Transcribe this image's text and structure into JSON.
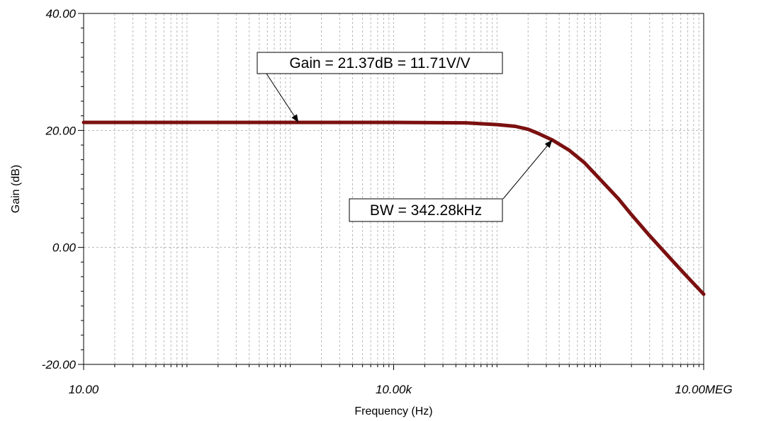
{
  "chart_data": {
    "type": "line",
    "xlabel": "Frequency (Hz)",
    "ylabel": "Gain (dB)",
    "x_scale": "log",
    "xlim": [
      10,
      10000000
    ],
    "ylim": [
      -20,
      40
    ],
    "x_ticks": [
      {
        "value": 10,
        "label": "10.00"
      },
      {
        "value": 10000,
        "label": "10.00k"
      },
      {
        "value": 10000000,
        "label": "10.00MEG"
      }
    ],
    "y_ticks": [
      {
        "value": 40,
        "label": "40.00"
      },
      {
        "value": 20,
        "label": "20.00"
      },
      {
        "value": 0,
        "label": "0.00"
      },
      {
        "value": -20,
        "label": "-20.00"
      }
    ],
    "grid": true,
    "series": [
      {
        "color": "#7b1010",
        "points": [
          [
            10,
            21.37
          ],
          [
            100,
            21.37
          ],
          [
            1000,
            21.37
          ],
          [
            10000,
            21.37
          ],
          [
            50000,
            21.3
          ],
          [
            100000,
            21.0
          ],
          [
            150000,
            20.7
          ],
          [
            200000,
            20.2
          ],
          [
            250000,
            19.5
          ],
          [
            342280,
            18.37
          ],
          [
            500000,
            16.6
          ],
          [
            700000,
            14.5
          ],
          [
            1000000,
            11.6
          ],
          [
            1500000,
            8.3
          ],
          [
            2000000,
            5.6
          ],
          [
            3000000,
            2.0
          ],
          [
            5000000,
            -2.3
          ],
          [
            7000000,
            -5.1
          ],
          [
            10000000,
            -8.0
          ]
        ]
      }
    ],
    "annotations": [
      {
        "text": "Gain = 21.37dB = 11.71V/V",
        "x": 1200,
        "y": 21.37
      },
      {
        "text": "BW = 342.28kHz",
        "x": 342280,
        "y": 18.37
      }
    ]
  }
}
